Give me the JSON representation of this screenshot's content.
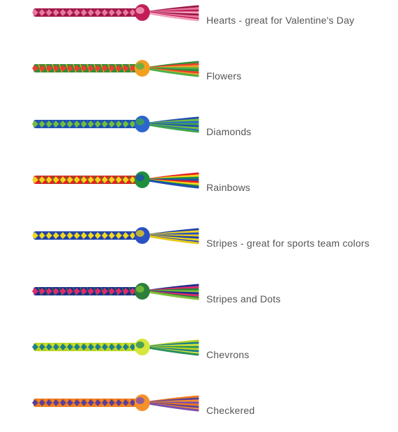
{
  "bracelets": [
    {
      "label": "Hearts - great for Valentine's Day",
      "colors": [
        "#9a1846",
        "#e8789e",
        "#c21e5a",
        "#f3a3bf"
      ],
      "icon": "hearts-bracelet-icon"
    },
    {
      "label": "Flowers",
      "colors": [
        "#2f8f3a",
        "#e8412e",
        "#f2a022",
        "#4fb048"
      ],
      "icon": "flowers-bracelet-icon"
    },
    {
      "label": "Diamonds",
      "colors": [
        "#1f4fb0",
        "#6fbf3a",
        "#2b66cc",
        "#3fa64a"
      ],
      "icon": "diamonds-bracelet-icon"
    },
    {
      "label": "Rainbows",
      "colors": [
        "#e82020",
        "#f3d21c",
        "#1e8f3c",
        "#1f4fb0"
      ],
      "icon": "rainbows-bracelet-icon"
    },
    {
      "label": "Stripes - great for sports team colors",
      "colors": [
        "#1f3fa8",
        "#f0d81a",
        "#2950c4",
        "#e6c917"
      ],
      "icon": "stripes-bracelet-icon"
    },
    {
      "label": "Stripes and Dots",
      "colors": [
        "#1a2f8f",
        "#e12a6a",
        "#2c7f3a",
        "#7fc03a"
      ],
      "icon": "stripes-dots-bracelet-icon"
    },
    {
      "label": "Chevrons",
      "colors": [
        "#b8d41e",
        "#1c7f8a",
        "#d6e63a",
        "#2a8f5c"
      ],
      "icon": "chevrons-bracelet-icon"
    },
    {
      "label": "Checkered",
      "colors": [
        "#f27a1a",
        "#5a3f9a",
        "#f5902c",
        "#7a4fb0"
      ],
      "icon": "checkered-bracelet-icon"
    }
  ]
}
